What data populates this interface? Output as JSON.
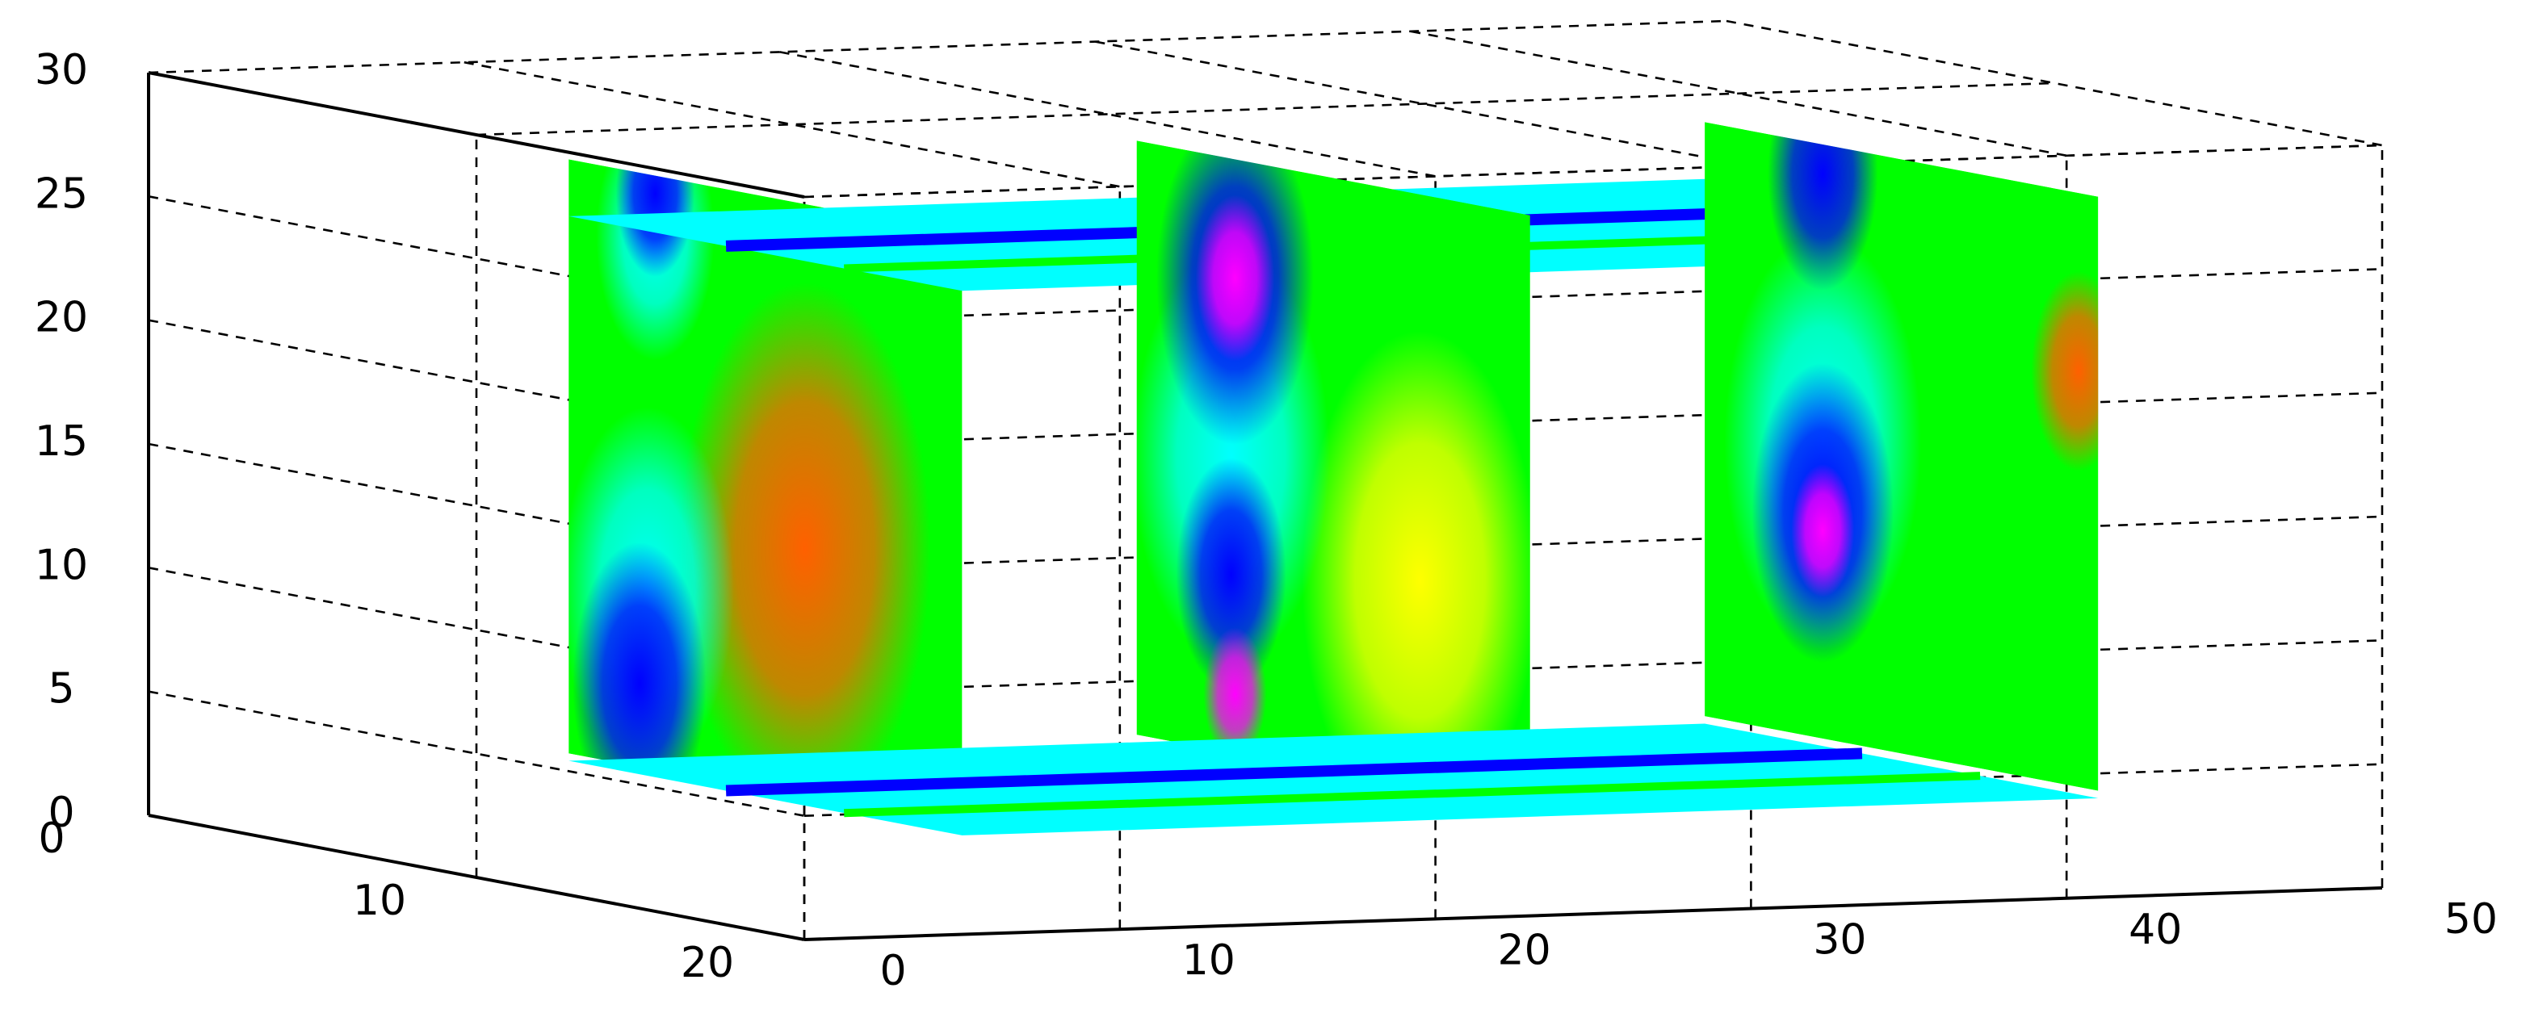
{
  "chart_data": {
    "type": "slice3d",
    "xlim": [
      0,
      50
    ],
    "ylim": [
      0,
      20
    ],
    "zlim": [
      0,
      30
    ],
    "xticks": [
      0,
      10,
      20,
      30,
      40,
      50
    ],
    "yticks": [
      0,
      10,
      20
    ],
    "zticks": [
      0,
      5,
      10,
      15,
      20,
      25,
      30
    ],
    "xslices": [
      5,
      23,
      41
    ],
    "zslices": [
      4,
      26
    ],
    "grid": true,
    "colormap": [
      "#0000ff",
      "#00ffff",
      "#00ff00",
      "#ffff00",
      "#ff6000",
      "#ff00ff"
    ]
  }
}
